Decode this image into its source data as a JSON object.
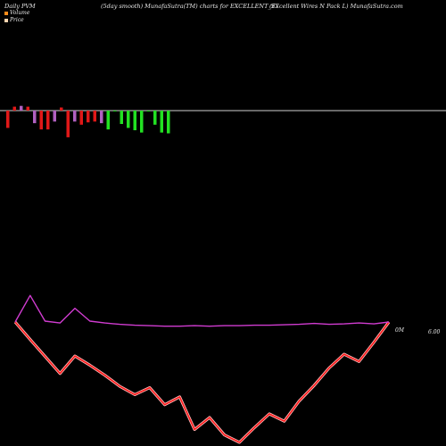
{
  "header": {
    "left": "Daily PVM",
    "center": "(5day smooth) MunafaSutra(TM) charts for EXCELLENT_ST",
    "right": "(Excellent Wires N  Pack L) MunafaSutra.com"
  },
  "legend": [
    {
      "label": "Volume",
      "color": "#ff8c1a"
    },
    {
      "label": "Price",
      "color": "#ffd5b0"
    }
  ],
  "price_label": "6.00",
  "volume_label": "0M",
  "colors": {
    "up": "#22e022",
    "down": "#e01818",
    "neutral": "#b060c0",
    "baseline": "#cfcfcf",
    "price_line": "#ff1a1a",
    "price_glow": "#ffc0c0",
    "ma_line": "#d03cd0"
  },
  "chart_data": {
    "type": "bar",
    "note_series": "volume bars relative to zero line; price and moving-average lines share hidden price axis",
    "volume": [
      {
        "v": -2.2,
        "c": "down"
      },
      {
        "v": 0.5,
        "c": "down"
      },
      {
        "v": 0.6,
        "c": "neutral"
      },
      {
        "v": 0.5,
        "c": "down"
      },
      {
        "v": -1.6,
        "c": "neutral"
      },
      {
        "v": -2.4,
        "c": "down"
      },
      {
        "v": -2.4,
        "c": "down"
      },
      {
        "v": -1.4,
        "c": "neutral"
      },
      {
        "v": 0.4,
        "c": "down"
      },
      {
        "v": -3.4,
        "c": "down"
      },
      {
        "v": -1.4,
        "c": "neutral"
      },
      {
        "v": -1.8,
        "c": "down"
      },
      {
        "v": -1.5,
        "c": "down"
      },
      {
        "v": -1.4,
        "c": "down"
      },
      {
        "v": -1.6,
        "c": "neutral"
      },
      {
        "v": -2.4,
        "c": "up"
      },
      {
        "v": -0.1,
        "c": "up"
      },
      {
        "v": -1.7,
        "c": "up"
      },
      {
        "v": -2.2,
        "c": "up"
      },
      {
        "v": -2.5,
        "c": "up"
      },
      {
        "v": -2.8,
        "c": "up"
      },
      {
        "v": -0.1,
        "c": "up"
      },
      {
        "v": -1.8,
        "c": "up"
      },
      {
        "v": -2.8,
        "c": "up"
      },
      {
        "v": -2.9,
        "c": "up"
      }
    ],
    "price": [
      6.0,
      5.62,
      5.25,
      4.88,
      5.26,
      5.06,
      4.84,
      4.6,
      4.42,
      4.57,
      4.2,
      4.37,
      3.66,
      3.92,
      3.54,
      3.38,
      3.7,
      4.0,
      3.84,
      4.28,
      4.62,
      5.0,
      5.3,
      5.14,
      5.56,
      6.0
    ],
    "ma": [
      6.0,
      6.58,
      6.02,
      5.98,
      6.3,
      6.02,
      5.98,
      5.95,
      5.93,
      5.92,
      5.91,
      5.91,
      5.92,
      5.91,
      5.92,
      5.92,
      5.93,
      5.93,
      5.94,
      5.95,
      5.97,
      5.95,
      5.96,
      5.98,
      5.96,
      6.0
    ],
    "price_range": [
      3.3,
      6.7
    ]
  }
}
